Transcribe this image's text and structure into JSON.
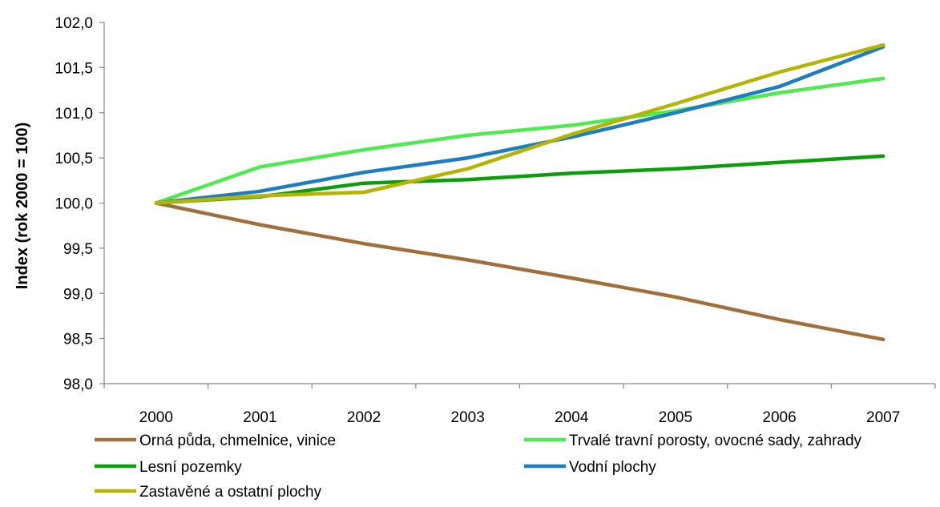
{
  "chart_data": {
    "type": "line",
    "title": "",
    "xlabel": "",
    "ylabel": "Index (rok 2000 = 100)",
    "categories": [
      "2000",
      "2001",
      "2002",
      "2003",
      "2004",
      "2005",
      "2006",
      "2007"
    ],
    "ylim": [
      98.0,
      102.0
    ],
    "yticks": [
      "98,0",
      "98,5",
      "99,0",
      "99,5",
      "100,0",
      "100,5",
      "101,0",
      "101,5",
      "102,0"
    ],
    "grid": false,
    "legend_position": "bottom",
    "series": [
      {
        "name": "Orná půda, chmelnice, vinice",
        "color": "#A0703A",
        "values": [
          100.0,
          99.76,
          99.55,
          99.37,
          99.17,
          98.96,
          98.71,
          98.49
        ]
      },
      {
        "name": "Trvalé travní porosty, ovocné sady, zahrady",
        "color": "#4DEB4D",
        "values": [
          100.0,
          100.4,
          100.59,
          100.75,
          100.86,
          101.02,
          101.22,
          101.38
        ]
      },
      {
        "name": "Lesní pozemky",
        "color": "#0A9E0A",
        "values": [
          100.0,
          100.07,
          100.22,
          100.26,
          100.33,
          100.38,
          100.45,
          100.52
        ]
      },
      {
        "name": "Vodní plochy",
        "color": "#1C7DC2",
        "values": [
          100.0,
          100.13,
          100.34,
          100.5,
          100.73,
          101.0,
          101.29,
          101.73
        ]
      },
      {
        "name": "Zastavěné a ostatní plochy",
        "color": "#B5B400",
        "values": [
          100.0,
          100.08,
          100.12,
          100.38,
          100.76,
          101.1,
          101.45,
          101.75
        ]
      }
    ]
  }
}
